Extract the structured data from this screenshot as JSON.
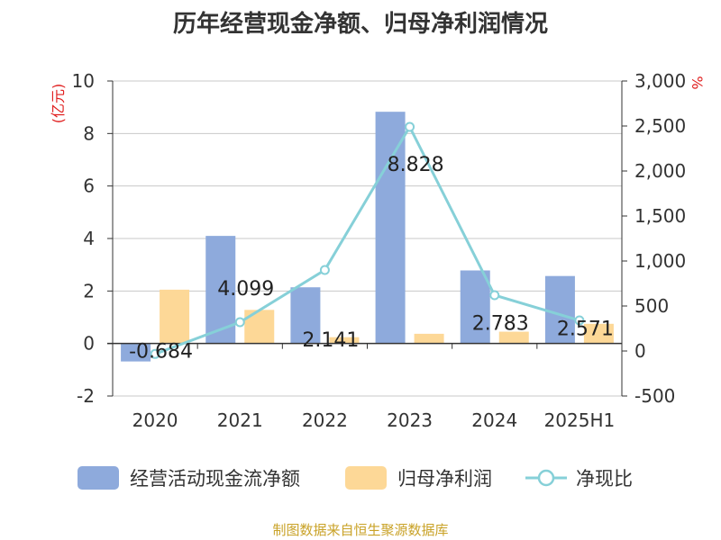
{
  "title": "历年经营现金净额、归母净利润情况",
  "source": "制图数据来自恒生聚源数据库",
  "left_axis_label": "(亿元)",
  "right_axis_label": "%",
  "legend": [
    {
      "name": "经营活动现金流净额",
      "color": "#8eaadc",
      "kind": "bar"
    },
    {
      "name": "归母净利润",
      "color": "#fdd897",
      "kind": "bar"
    },
    {
      "name": "净现比",
      "color": "#86d0d8",
      "kind": "line"
    }
  ],
  "chart_data": {
    "type": "bar",
    "categories": [
      "2020",
      "2021",
      "2022",
      "2023",
      "2024",
      "2025H1"
    ],
    "series": [
      {
        "name": "经营活动现金流净额",
        "axis": "left",
        "type": "bar",
        "color": "#8eaadc",
        "values": [
          -0.684,
          4.099,
          2.141,
          8.828,
          2.783,
          2.571
        ],
        "data_labels": [
          "-0.684",
          "4.099",
          "2.141",
          "8.828",
          "2.783",
          "2.571"
        ]
      },
      {
        "name": "归母净利润",
        "axis": "left",
        "type": "bar",
        "color": "#fdd897",
        "values": [
          2.05,
          1.28,
          0.24,
          0.37,
          0.45,
          0.75
        ]
      },
      {
        "name": "净现比",
        "axis": "right",
        "type": "line",
        "color": "#86d0d8",
        "values": [
          -33,
          320,
          900,
          2490,
          620,
          340
        ]
      }
    ],
    "left_axis": {
      "min": -2,
      "max": 10,
      "ticks": [
        "-2",
        "0",
        "2",
        "4",
        "6",
        "8",
        "10"
      ],
      "unit": "(亿元)"
    },
    "right_axis": {
      "min": -500,
      "max": 3000,
      "ticks": [
        "-500",
        "0",
        "500",
        "1,000",
        "1,500",
        "2,000",
        "2,500",
        "3,000"
      ],
      "unit": "%"
    },
    "grid": true,
    "legend_position": "bottom"
  }
}
